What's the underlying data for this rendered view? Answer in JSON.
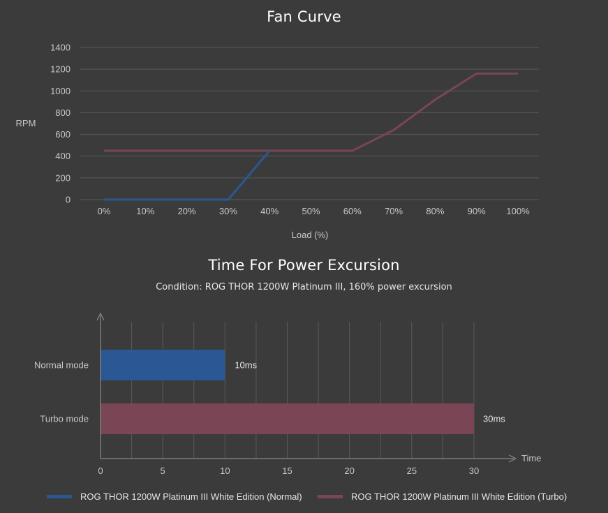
{
  "colors": {
    "normal": "#2b5795",
    "turbo": "#7a4554",
    "grid": "#5a5a5a",
    "text": "#c8c8c8"
  },
  "chart_data": [
    {
      "type": "line",
      "title": "Fan Curve",
      "xlabel": "Load (%)",
      "ylabel": "RPM",
      "x_ticks": [
        "0%",
        "10%",
        "20%",
        "30%",
        "40%",
        "50%",
        "60%",
        "70%",
        "80%",
        "90%",
        "100%"
      ],
      "y_ticks": [
        "0",
        "200",
        "400",
        "600",
        "800",
        "1000",
        "1200",
        "1400"
      ],
      "xlim": [
        0,
        100
      ],
      "ylim": [
        0,
        1400
      ],
      "grid": "horizontal",
      "series": [
        {
          "name": "ROG THOR 1200W Platinum III White Edition (Normal)",
          "x": [
            0,
            30,
            40
          ],
          "y": [
            0,
            0,
            450
          ]
        },
        {
          "name": "ROG THOR 1200W Platinum III White Edition (Turbo)",
          "x": [
            0,
            60,
            70,
            80,
            90,
            100
          ],
          "y": [
            450,
            450,
            640,
            920,
            1160,
            1160
          ]
        }
      ]
    },
    {
      "type": "bar",
      "orientation": "horizontal",
      "title": "Time For Power Excursion",
      "subtitle": "Condition: ROG THOR 1200W Platinum III, 160% power excursion",
      "xlabel": "Time",
      "x_ticks": [
        "0",
        "5",
        "10",
        "15",
        "20",
        "25",
        "30"
      ],
      "xlim": [
        0,
        30
      ],
      "categories": [
        "Normal mode",
        "Turbo mode"
      ],
      "values": [
        10,
        30
      ],
      "data_labels": [
        "10ms",
        "30ms"
      ],
      "grid": "vertical"
    }
  ],
  "legend": [
    {
      "label": "ROG THOR 1200W Platinum III White Edition (Normal)"
    },
    {
      "label": "ROG THOR 1200W Platinum III White Edition (Turbo)"
    }
  ]
}
